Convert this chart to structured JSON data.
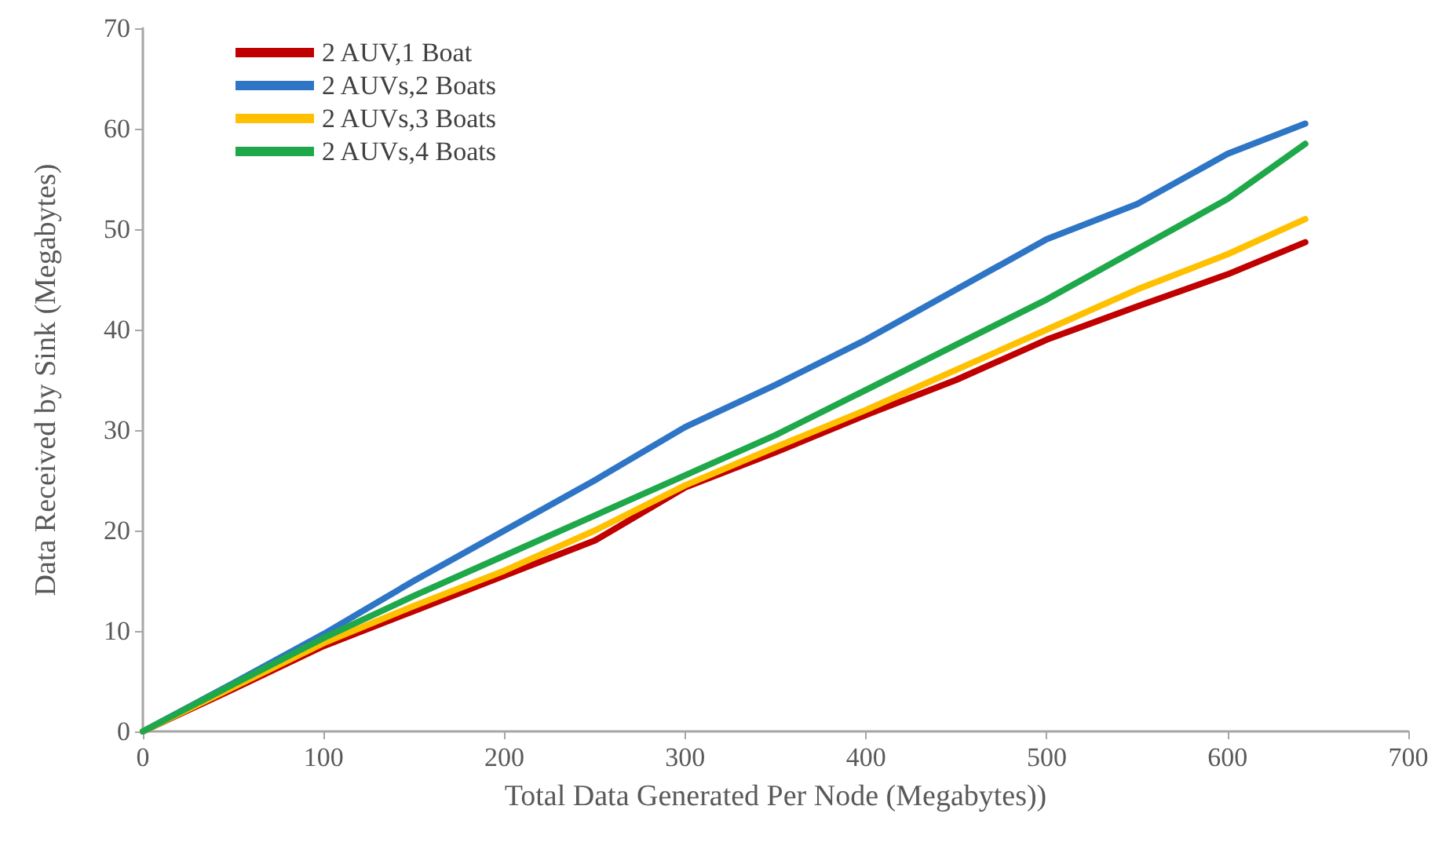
{
  "chart_data": {
    "type": "line",
    "xlabel": "Total Data Generated Per Node (Megabytes))",
    "ylabel": "Data Received by Sink (Megabytes)",
    "x": [
      0,
      50,
      100,
      150,
      200,
      250,
      300,
      350,
      400,
      450,
      500,
      550,
      600,
      643
    ],
    "series": [
      {
        "name": "2 AUV,1 Boat",
        "color": "#c00000",
        "values": [
          0,
          4.2,
          8.5,
          12,
          15.5,
          19,
          24.3,
          27.8,
          31.5,
          35,
          39,
          42.3,
          45.5,
          48.7
        ]
      },
      {
        "name": "2 AUVs,2 Boats",
        "color": "#2e75c6",
        "values": [
          0,
          4.8,
          9.7,
          15,
          20,
          25,
          30.3,
          34.5,
          39,
          44,
          49,
          52.5,
          57.5,
          60.5
        ]
      },
      {
        "name": "2 AUVs,3 Boats",
        "color": "#ffc000",
        "values": [
          0,
          4.4,
          8.8,
          12.5,
          16,
          20,
          24.5,
          28.3,
          32,
          36,
          40,
          44,
          47.5,
          51
        ]
      },
      {
        "name": "2 AUVs,4 Boats",
        "color": "#1fa84a",
        "values": [
          0,
          4.7,
          9.3,
          13.5,
          17.5,
          21.5,
          25.5,
          29.5,
          34,
          38.5,
          43,
          48,
          53,
          58.5
        ]
      }
    ],
    "xlim": [
      0,
      700
    ],
    "xticks": [
      0,
      100,
      200,
      300,
      400,
      500,
      600,
      700
    ],
    "ylim": [
      0,
      70
    ],
    "yticks": [
      0,
      10,
      20,
      30,
      40,
      50,
      60,
      70
    ],
    "grid": false,
    "legend": "top left",
    "marker": "none",
    "line_style": "solid"
  }
}
